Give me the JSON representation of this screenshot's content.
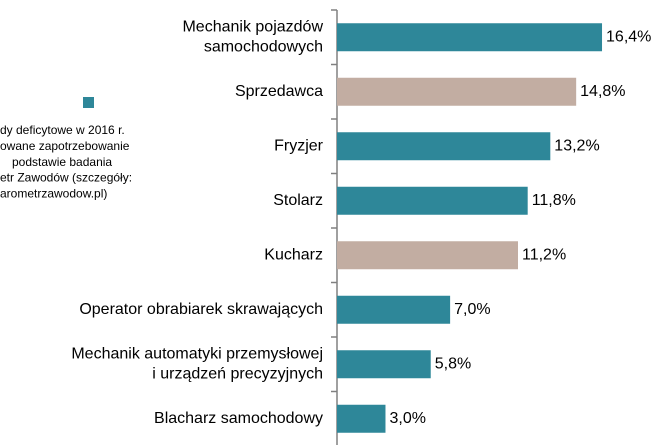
{
  "chart_data": {
    "type": "barh",
    "categories": [
      "Mechanik pojazdów\nsamochodowych",
      "Sprzedawca",
      "Fryzjer",
      "Stolarz",
      "Kucharz",
      "Operator obrabiarek skrawających",
      "Mechanik automatyki przemysłowej\ni urządzeń  precyzyjnych",
      "Blacharz samochodowy"
    ],
    "values": [
      16.4,
      14.8,
      13.2,
      11.8,
      11.2,
      7.0,
      5.8,
      3.0
    ],
    "value_labels": [
      "16,4%",
      "14,8%",
      "13,2%",
      "11,8%",
      "11,2%",
      "7,0%",
      "5,8%",
      "3,0%"
    ],
    "colors": [
      "#2e8799",
      "#c2ada2",
      "#2e8799",
      "#2e8799",
      "#c2ada2",
      "#2e8799",
      "#2e8799",
      "#2e8799"
    ],
    "xlim": [
      0,
      20
    ],
    "legend": {
      "color": "#2e8799",
      "lines": [
        "dy deficytowe w 2016 r.",
        "owane zapotrzebowanie",
        "  podstawie  badania",
        "etr Zawodów (szczegóły:",
        "arometrzawodow.pl)"
      ]
    }
  }
}
